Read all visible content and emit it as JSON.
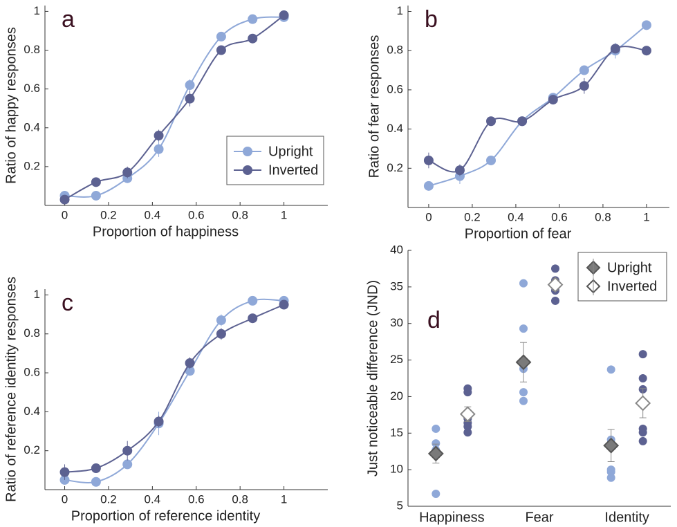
{
  "chart_data": [
    {
      "type": "line",
      "label": "a",
      "xlabel": "Proportion of happiness",
      "ylabel": "Ratio of happy responses",
      "x": [
        0,
        0.143,
        0.286,
        0.429,
        0.571,
        0.714,
        0.857,
        1
      ],
      "series": [
        {
          "name": "Upright",
          "color": "#8fa8d8",
          "values": [
            0.05,
            0.05,
            0.14,
            0.29,
            0.62,
            0.87,
            0.96,
            0.97
          ],
          "errors": [
            0.01,
            0.01,
            0.02,
            0.04,
            0.03,
            0.02,
            0.01,
            0.01
          ]
        },
        {
          "name": "Inverted",
          "color": "#5c6191",
          "values": [
            0.03,
            0.12,
            0.17,
            0.36,
            0.55,
            0.8,
            0.86,
            0.98
          ],
          "errors": [
            0.01,
            0.01,
            0.03,
            0.03,
            0.04,
            0.02,
            0.01,
            0.01
          ]
        }
      ],
      "xlim": [
        -0.09,
        1.2
      ],
      "ylim": [
        0,
        1.03
      ],
      "xticks": [
        0,
        0.2,
        0.4,
        0.6,
        0.8,
        1
      ],
      "yticks": [
        0.2,
        0.4,
        0.6,
        0.8,
        1
      ],
      "legend": "lower right"
    },
    {
      "type": "line",
      "label": "b",
      "xlabel": "Proportion of fear",
      "ylabel": "Ratio of fear responses",
      "x": [
        0,
        0.143,
        0.286,
        0.429,
        0.571,
        0.714,
        0.857,
        1
      ],
      "series": [
        {
          "name": "Upright",
          "color": "#8fa8d8",
          "values": [
            0.11,
            0.16,
            0.24,
            0.44,
            0.56,
            0.7,
            0.8,
            0.93
          ],
          "errors": [
            0.02,
            0.04,
            0.02,
            0.01,
            0.02,
            0.01,
            0.04,
            0.01
          ]
        },
        {
          "name": "Inverted",
          "color": "#5c6191",
          "values": [
            0.24,
            0.19,
            0.44,
            0.44,
            0.55,
            0.62,
            0.81,
            0.8
          ],
          "errors": [
            0.04,
            0.03,
            0.01,
            0.01,
            0.02,
            0.04,
            0.02,
            0.01
          ]
        }
      ],
      "xlim": [
        -0.095,
        1.105
      ],
      "ylim": [
        0,
        1.03
      ],
      "xticks": [
        0,
        0.2,
        0.4,
        0.6,
        0.8,
        1
      ],
      "yticks": [
        0.2,
        0.4,
        0.6,
        0.8,
        1
      ]
    },
    {
      "type": "line",
      "label": "c",
      "xlabel": "Proportion of reference identity",
      "ylabel": "Ratio of reference identity responses",
      "x": [
        0,
        0.143,
        0.286,
        0.429,
        0.571,
        0.714,
        0.857,
        1
      ],
      "series": [
        {
          "name": "Upright",
          "color": "#8fa8d8",
          "values": [
            0.05,
            0.04,
            0.13,
            0.34,
            0.61,
            0.87,
            0.97,
            0.97
          ],
          "errors": [
            0.02,
            0.02,
            0.02,
            0.06,
            0.02,
            0.03,
            0.01,
            0.01
          ]
        },
        {
          "name": "Inverted",
          "color": "#5c6191",
          "values": [
            0.09,
            0.11,
            0.2,
            0.35,
            0.65,
            0.8,
            0.88,
            0.95
          ],
          "errors": [
            0.04,
            0.02,
            0.05,
            0.03,
            0.03,
            0.03,
            0.01,
            0.02
          ]
        }
      ],
      "xlim": [
        -0.09,
        1.2
      ],
      "ylim": [
        0,
        1.03
      ],
      "xticks": [
        0,
        0.2,
        0.4,
        0.6,
        0.8,
        1
      ],
      "yticks": [
        0.2,
        0.4,
        0.6,
        0.8,
        1
      ]
    },
    {
      "type": "strip",
      "label": "d",
      "ylabel": "Just noticeable difference (JND)",
      "categories": [
        "Happiness",
        "Fear",
        "Identity"
      ],
      "series": [
        {
          "name": "Upright",
          "color": "#8fa8d8",
          "mean_color": "#7a7a7a",
          "values": [
            [
              15.6,
              13.6,
              12.7,
              12.3,
              6.7
            ],
            [
              35.5,
              29.3,
              23.8,
              20.6,
              19.4
            ],
            [
              23.7,
              14.1,
              13.3,
              10,
              9.7,
              8.9
            ]
          ],
          "means": [
            12.2,
            24.7,
            13.3
          ],
          "errors": [
            1.3,
            2.7,
            2.2
          ]
        },
        {
          "name": "Inverted",
          "color": "#5c6191",
          "mean_color": "#ffffff",
          "values": [
            [
              21.1,
              20.6,
              17,
              16.4,
              15.9,
              15.1
            ],
            [
              37.5,
              35.9,
              35.3,
              34.5,
              33.1
            ],
            [
              25.8,
              22.5,
              21,
              15.6,
              15.1,
              13.9
            ]
          ],
          "means": [
            17.6,
            35.3,
            19.1
          ],
          "errors": [
            1,
            0.8,
            2
          ]
        }
      ],
      "ylim": [
        5,
        40
      ],
      "yticks": [
        5,
        10,
        15,
        20,
        25,
        30,
        35,
        40
      ],
      "legend": "upper right"
    }
  ]
}
